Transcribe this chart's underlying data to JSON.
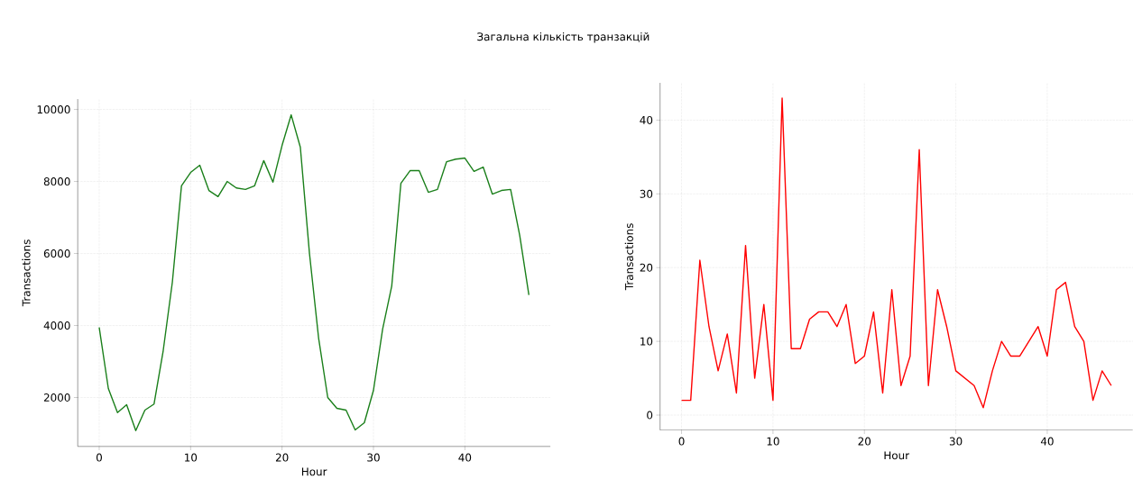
{
  "chart_data": [
    {
      "type": "line",
      "title": "Загальна кількість транзакцій",
      "xlabel": "Hour",
      "ylabel": "Transactions",
      "grid": true,
      "xlim": [
        -2.35,
        49.35
      ],
      "ylim": [
        642,
        10288
      ],
      "xticks": [
        0,
        10,
        20,
        30,
        40
      ],
      "yticks": [
        2000,
        4000,
        6000,
        8000,
        10000
      ],
      "x": [
        0,
        1,
        2,
        3,
        4,
        5,
        6,
        7,
        8,
        9,
        10,
        11,
        12,
        13,
        14,
        15,
        16,
        17,
        18,
        19,
        20,
        21,
        22,
        23,
        24,
        25,
        26,
        27,
        28,
        29,
        30,
        31,
        32,
        33,
        34,
        35,
        36,
        37,
        38,
        39,
        40,
        41,
        42,
        43,
        44,
        45,
        46,
        47
      ],
      "series": [
        {
          "color": "#1a7f1a",
          "values": [
            3950,
            2250,
            1580,
            1800,
            1080,
            1650,
            1820,
            3300,
            5200,
            7880,
            8250,
            8450,
            7750,
            7580,
            8000,
            7820,
            7780,
            7880,
            8580,
            7980,
            9000,
            9850,
            8950,
            6000,
            3650,
            2000,
            1700,
            1650,
            1100,
            1300,
            2200,
            3900,
            5100,
            7950,
            8300,
            8300,
            7700,
            7780,
            8550,
            8620,
            8650,
            8280,
            8400,
            7650,
            7750,
            7780,
            6500,
            4850
          ]
        }
      ]
    },
    {
      "type": "line",
      "xlabel": "Hour",
      "ylabel": "Transactions",
      "grid": true,
      "xlim": [
        -2.35,
        49.35
      ],
      "ylim": [
        -2.05,
        45.05
      ],
      "xticks": [
        0,
        10,
        20,
        30,
        40
      ],
      "yticks": [
        0,
        10,
        20,
        30,
        40
      ],
      "x": [
        0,
        1,
        2,
        3,
        4,
        5,
        6,
        7,
        8,
        9,
        10,
        11,
        12,
        13,
        14,
        15,
        16,
        17,
        18,
        19,
        20,
        21,
        22,
        23,
        24,
        25,
        26,
        27,
        28,
        29,
        30,
        31,
        32,
        33,
        34,
        35,
        36,
        37,
        38,
        39,
        40,
        41,
        42,
        43,
        44,
        45,
        46,
        47
      ],
      "series": [
        {
          "color": "#ff0000",
          "values": [
            2,
            2,
            21,
            12,
            6,
            11,
            3,
            23,
            5,
            15,
            2,
            43,
            9,
            9,
            13,
            14,
            14,
            12,
            15,
            7,
            8,
            14,
            3,
            17,
            4,
            8,
            36,
            4,
            17,
            12,
            6,
            5,
            4,
            1,
            6,
            10,
            8,
            8,
            10,
            12,
            8,
            17,
            18,
            12,
            10,
            2,
            6,
            4
          ]
        }
      ]
    }
  ]
}
